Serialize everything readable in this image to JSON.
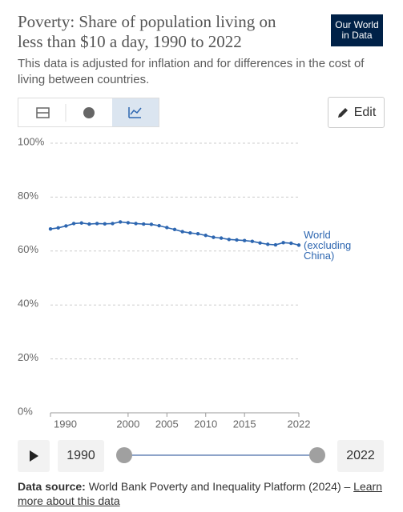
{
  "chart_data": {
    "type": "line",
    "title": "Poverty: Share of population living on less than $10 a day, 1990 to 2022",
    "subtitle": "This data is adjusted for inflation and for differences in the cost of living between countries.",
    "logo": "Our World in Data",
    "edit_label": "Edit",
    "x": [
      1990,
      1991,
      1992,
      1993,
      1994,
      1995,
      1996,
      1997,
      1998,
      1999,
      2000,
      2001,
      2002,
      2003,
      2004,
      2005,
      2006,
      2007,
      2008,
      2009,
      2010,
      2011,
      2012,
      2013,
      2014,
      2015,
      2016,
      2017,
      2018,
      2019,
      2020,
      2021,
      2022
    ],
    "series": [
      {
        "name": "World (excluding China)",
        "color": "#2d66b0",
        "values": [
          68.2,
          68.6,
          69.3,
          70.2,
          70.4,
          70.0,
          70.2,
          70.1,
          70.2,
          70.8,
          70.5,
          70.2,
          70.0,
          69.9,
          69.4,
          68.7,
          68.0,
          67.2,
          66.7,
          66.4,
          65.8,
          65.1,
          64.8,
          64.3,
          64.1,
          63.9,
          63.6,
          63.0,
          62.5,
          62.3,
          63.1,
          62.9,
          62.2
        ]
      }
    ],
    "xlim": [
      1990,
      2022
    ],
    "xticks": [
      1990,
      2000,
      2005,
      2010,
      2015,
      2022
    ],
    "ylim": [
      0,
      100
    ],
    "yticks": [
      {
        "value": 0,
        "label": "0%"
      },
      {
        "value": 20,
        "label": "20%"
      },
      {
        "value": 40,
        "label": "40%"
      },
      {
        "value": 60,
        "label": "60%"
      },
      {
        "value": 80,
        "label": "80%"
      },
      {
        "value": 100,
        "label": "100%"
      }
    ],
    "grid": true,
    "source_label": "Data source:",
    "source": "World Bank Poverty and Inequality Platform (2024) –",
    "source_link": "Learn more about this data"
  }
}
